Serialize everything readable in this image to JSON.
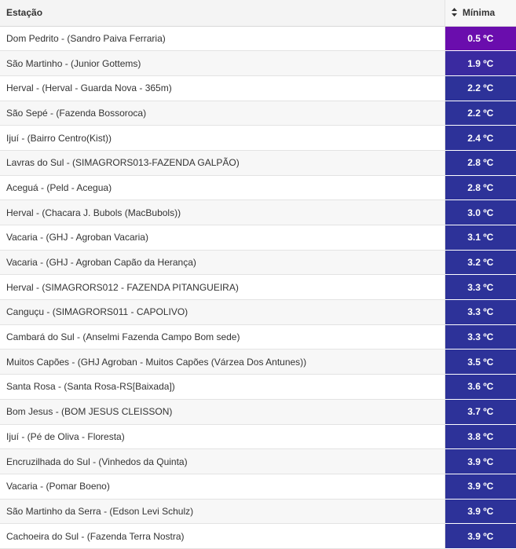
{
  "table": {
    "headers": {
      "station": "Estação",
      "minimum": "Mínima",
      "sort_icon": "sort-icon"
    },
    "rows": [
      {
        "station": "Dom Pedrito - (Sandro Paiva Ferraria)",
        "min": "0.5 ºC",
        "color": "#6a0dad"
      },
      {
        "station": "São Martinho - (Junior Gottems)",
        "min": "1.9 ºC",
        "color": "#3a2aa0"
      },
      {
        "station": "Herval - (Herval - Guarda Nova - 365m)",
        "min": "2.2 ºC",
        "color": "#2d3299"
      },
      {
        "station": "São Sepé - (Fazenda Bossoroca)",
        "min": "2.2 ºC",
        "color": "#2d3299"
      },
      {
        "station": "Ijuí - (Bairro Centro(Kist))",
        "min": "2.4 ºC",
        "color": "#2d3299"
      },
      {
        "station": "Lavras do Sul - (SIMAGRORS013-FAZENDA GALPÃO)",
        "min": "2.8 ºC",
        "color": "#2d3299"
      },
      {
        "station": "Aceguá - (Peld - Acegua)",
        "min": "2.8 ºC",
        "color": "#2d3299"
      },
      {
        "station": "Herval - (Chacara J. Bubols (MacBubols))",
        "min": "3.0 ºC",
        "color": "#2d3299"
      },
      {
        "station": "Vacaria - (GHJ - Agroban Vacaria)",
        "min": "3.1 ºC",
        "color": "#2d3299"
      },
      {
        "station": "Vacaria - (GHJ - Agroban Capão da Herança)",
        "min": "3.2 ºC",
        "color": "#2d3299"
      },
      {
        "station": "Herval - (SIMAGRORS012 - FAZENDA PITANGUEIRA)",
        "min": "3.3 ºC",
        "color": "#2d3299"
      },
      {
        "station": "Canguçu - (SIMAGRORS011 - CAPOLIVO)",
        "min": "3.3 ºC",
        "color": "#2d3299"
      },
      {
        "station": "Cambará do Sul - (Anselmi Fazenda Campo Bom sede)",
        "min": "3.3 ºC",
        "color": "#2d3299"
      },
      {
        "station": "Muitos Capões - (GHJ Agroban - Muitos Capões (Várzea Dos Antunes))",
        "min": "3.5 ºC",
        "color": "#2d3299"
      },
      {
        "station": "Santa Rosa - (Santa Rosa-RS[Baixada])",
        "min": "3.6 ºC",
        "color": "#2d3299"
      },
      {
        "station": "Bom Jesus - (BOM JESUS CLEISSON)",
        "min": "3.7 ºC",
        "color": "#2d3299"
      },
      {
        "station": "Ijuí - (Pé de Oliva - Floresta)",
        "min": "3.8 ºC",
        "color": "#2d3299"
      },
      {
        "station": "Encruzilhada do Sul - (Vinhedos da Quinta)",
        "min": "3.9 ºC",
        "color": "#2d3299"
      },
      {
        "station": "Vacaria - (Pomar Boeno)",
        "min": "3.9 ºC",
        "color": "#2d3299"
      },
      {
        "station": "São Martinho da Serra - (Edson Levi Schulz)",
        "min": "3.9 ºC",
        "color": "#2d3299"
      },
      {
        "station": "Cachoeira do Sul - (Fazenda Terra Nostra)",
        "min": "3.9 ºC",
        "color": "#2d3299"
      }
    ]
  }
}
